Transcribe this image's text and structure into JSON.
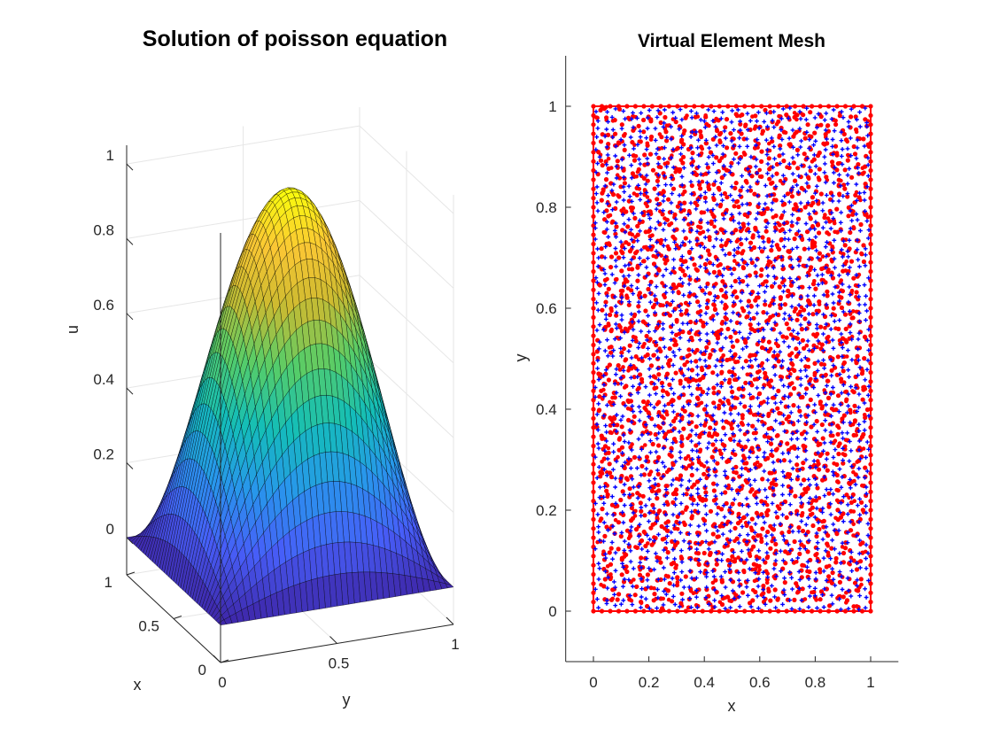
{
  "colors": {
    "mesh_vertices": "#ff0000",
    "element_centroids": "#0000ff",
    "surface_colormap": "parula",
    "edges": "#000000",
    "axis": "#262626",
    "grid": "#e6e6e6"
  },
  "chart_data": [
    {
      "type": "surface",
      "title": "Solution of poisson equation",
      "xlabel": "x",
      "ylabel": "y",
      "zlabel": "u",
      "x_ticks": [
        "0",
        "0.5",
        "1"
      ],
      "y_ticks": [
        "1",
        "0.5",
        "0"
      ],
      "z_ticks": [
        "1",
        "0.8",
        "0.6",
        "0.4",
        "0.2",
        "0"
      ],
      "xlim": [
        0,
        1
      ],
      "ylim": [
        0,
        1
      ],
      "zlim": [
        -0.1,
        1.05
      ],
      "function": "sin(pi*x)*sin(pi*y)",
      "u_max": 1,
      "grid": true
    },
    {
      "type": "scatter",
      "title": "Virtual Element Mesh",
      "xlabel": "x",
      "ylabel": "y",
      "x_ticks": [
        "0",
        "0.2",
        "0.4",
        "0.6",
        "0.8",
        "1"
      ],
      "y_ticks": [
        "0",
        "0.2",
        "0.4",
        "0.6",
        "0.8",
        "1"
      ],
      "xlim": [
        -0.1,
        1.1
      ],
      "ylim": [
        -0.1,
        1.1
      ],
      "domain": [
        [
          0,
          0
        ],
        [
          1,
          0
        ],
        [
          1,
          1
        ],
        [
          0,
          1
        ]
      ],
      "series": [
        {
          "marker": "vertex"
        },
        {
          "marker": "centroid"
        }
      ],
      "grid": false
    }
  ]
}
